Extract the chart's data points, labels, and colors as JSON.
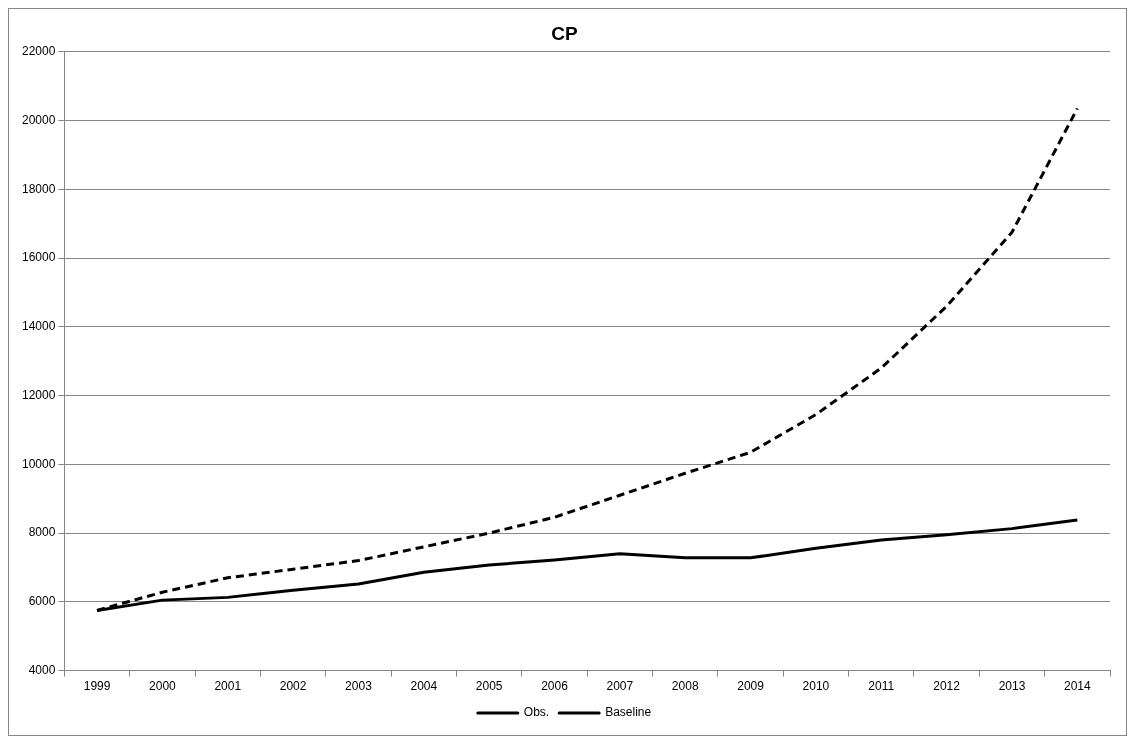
{
  "chart_data": {
    "type": "line",
    "title": "CP",
    "categories": [
      "1999",
      "2000",
      "2001",
      "2002",
      "2003",
      "2004",
      "2005",
      "2006",
      "2007",
      "2008",
      "2009",
      "2010",
      "2011",
      "2012",
      "2013",
      "2014"
    ],
    "series": [
      {
        "name": "Obs.",
        "color": "#000000",
        "line_style": "solid",
        "values": [
          5750,
          6050,
          6130,
          6340,
          6520,
          6860,
          7070,
          7220,
          7400,
          7280,
          7280,
          7560,
          7800,
          7950,
          8130,
          8380
        ]
      },
      {
        "name": "Baseline",
        "color": "#000000",
        "line_style": "dashed",
        "values": [
          5750,
          6280,
          6700,
          6950,
          7200,
          7600,
          8000,
          8460,
          9100,
          9740,
          10350,
          11450,
          12800,
          14600,
          16750,
          20350
        ]
      }
    ],
    "ylim": [
      4000,
      22000
    ],
    "yticks": [
      4000,
      6000,
      8000,
      10000,
      12000,
      14000,
      16000,
      18000,
      20000,
      22000
    ],
    "grid": "y",
    "legend": "bottom",
    "marker": "none"
  }
}
